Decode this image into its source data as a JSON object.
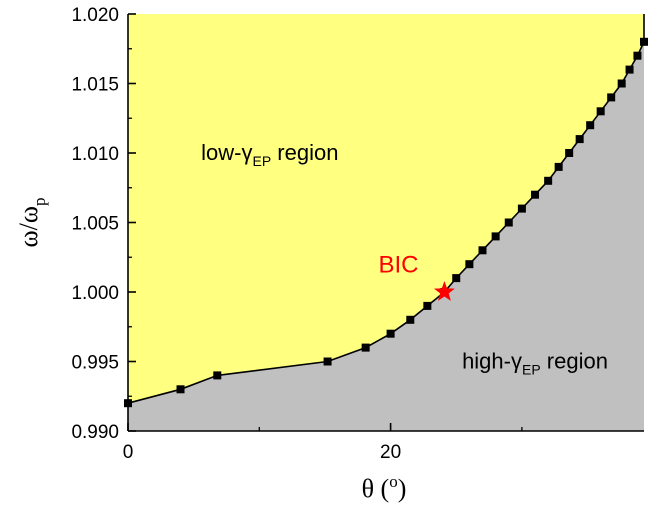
{
  "chart_data": {
    "type": "area",
    "xlabel_symbol": "θ",
    "xlabel_unit": "o",
    "ylabel_main": "ω/ω",
    "ylabel_sub": "p",
    "xlim": [
      0,
      39.3
    ],
    "ylim": [
      0.99,
      1.02
    ],
    "x_ticks": [
      0,
      20
    ],
    "x_minor_ticks": [
      10,
      30
    ],
    "y_ticks": [
      "0.990",
      "0.995",
      "1.000",
      "1.005",
      "1.010",
      "1.015",
      "1.020"
    ],
    "series": [
      {
        "x": [
          0,
          4,
          6.8,
          15.2,
          18.1,
          20,
          21.5,
          22.8,
          24.1,
          25,
          26,
          27,
          28,
          29,
          30,
          31,
          32,
          32.8,
          33.6,
          34.4,
          35.2,
          36,
          36.8,
          37.6,
          38.2,
          38.8,
          39.3
        ],
        "y": [
          0.992,
          0.993,
          0.994,
          0.995,
          0.996,
          0.997,
          0.998,
          0.999,
          1.0,
          1.001,
          1.002,
          1.003,
          1.004,
          1.005,
          1.006,
          1.007,
          1.008,
          1.009,
          1.01,
          1.011,
          1.012,
          1.013,
          1.014,
          1.015,
          1.016,
          1.017,
          1.018
        ]
      }
    ],
    "annotations": {
      "upper_region": {
        "text_before": "low-γ",
        "sub": "EP",
        "text_after": " region",
        "x": 10.8,
        "y": 1.0095
      },
      "lower_region": {
        "text_before": "high-γ",
        "sub": "EP",
        "text_after": " region",
        "x": 31,
        "y": 0.9945
      },
      "bic": {
        "text": "BIC",
        "marker_x": 24.1,
        "marker_y": 1.0,
        "label_x": 20.6,
        "label_y": 1.0014
      }
    },
    "colors": {
      "upper_fill": "#ffff80",
      "lower_fill": "#c0c0c0",
      "line": "#000000",
      "bic": "#ff0000"
    }
  }
}
